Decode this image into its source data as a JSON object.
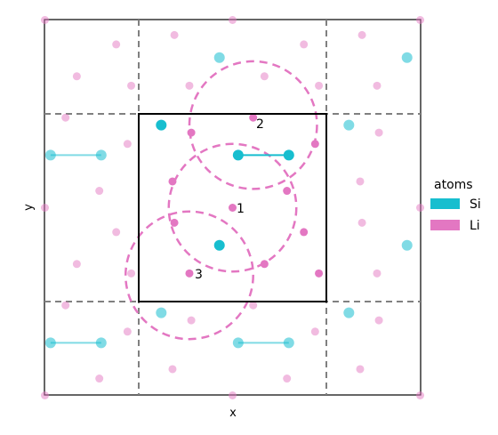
{
  "xlabel": "x",
  "ylabel": "y",
  "legend": {
    "title": "atoms",
    "entries": [
      {
        "label": "Si",
        "color": "#17becf"
      },
      {
        "label": "Li",
        "color": "#e377c2"
      }
    ]
  },
  "markers": [
    {
      "label": "1"
    },
    {
      "label": "2"
    },
    {
      "label": "3"
    }
  ],
  "colors": {
    "si": "#17becf",
    "li": "#e377c2",
    "cell_border": "#000000",
    "image_border": "#808080"
  }
}
